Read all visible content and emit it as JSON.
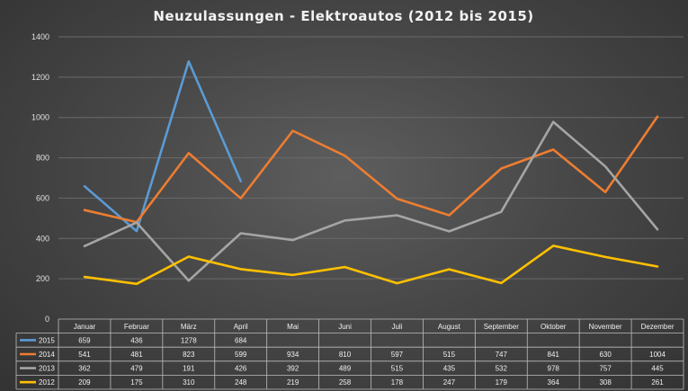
{
  "chart_data": {
    "type": "line",
    "title": "Neuzulassungen - Elektroautos (2012 bis 2015)",
    "ylim": [
      0,
      1400
    ],
    "yticks": [
      "0",
      "200",
      "400",
      "600",
      "800",
      "1000",
      "1200",
      "1400"
    ],
    "grid": true,
    "legend": "data table",
    "categories": [
      "Januar",
      "Februar",
      "März",
      "April",
      "Mai",
      "Juni",
      "Juli",
      "August",
      "September",
      "Oktober",
      "November",
      "Dezember"
    ],
    "series": [
      {
        "name": "2015",
        "color": "#5b9bd5",
        "values": [
          659,
          436,
          1278,
          684,
          null,
          null,
          null,
          null,
          null,
          null,
          null,
          null
        ]
      },
      {
        "name": "2014",
        "color": "#ed7d31",
        "values": [
          541,
          481,
          823,
          599,
          934,
          810,
          597,
          515,
          747,
          841,
          630,
          1004
        ]
      },
      {
        "name": "2013",
        "color": "#a5a5a5",
        "values": [
          362,
          479,
          191,
          426,
          392,
          489,
          515,
          435,
          532,
          978,
          757,
          445
        ]
      },
      {
        "name": "2012",
        "color": "#ffc000",
        "values": [
          209,
          175,
          310,
          248,
          219,
          258,
          178,
          247,
          179,
          364,
          308,
          261
        ]
      }
    ]
  }
}
